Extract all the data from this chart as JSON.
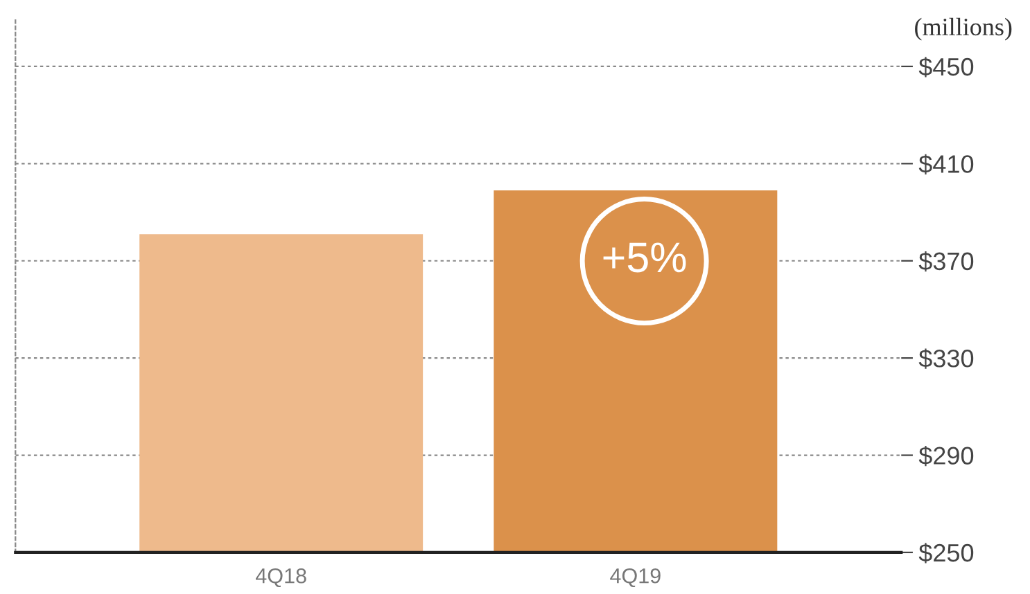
{
  "chart_data": {
    "type": "bar",
    "ylabel": "(millions)",
    "categories": [
      "4Q18",
      "4Q19"
    ],
    "values": [
      381,
      399
    ],
    "colors": [
      "#eeba8c",
      "#db914b"
    ],
    "ylim": [
      250,
      470
    ],
    "yticks": [
      {
        "value": 250,
        "label": "$250"
      },
      {
        "value": 290,
        "label": "$290"
      },
      {
        "value": 330,
        "label": "$330"
      },
      {
        "value": 370,
        "label": "$370"
      },
      {
        "value": 410,
        "label": "$410"
      },
      {
        "value": 450,
        "label": "$450"
      }
    ],
    "grid": "y",
    "annotations": [
      "+5%"
    ]
  }
}
